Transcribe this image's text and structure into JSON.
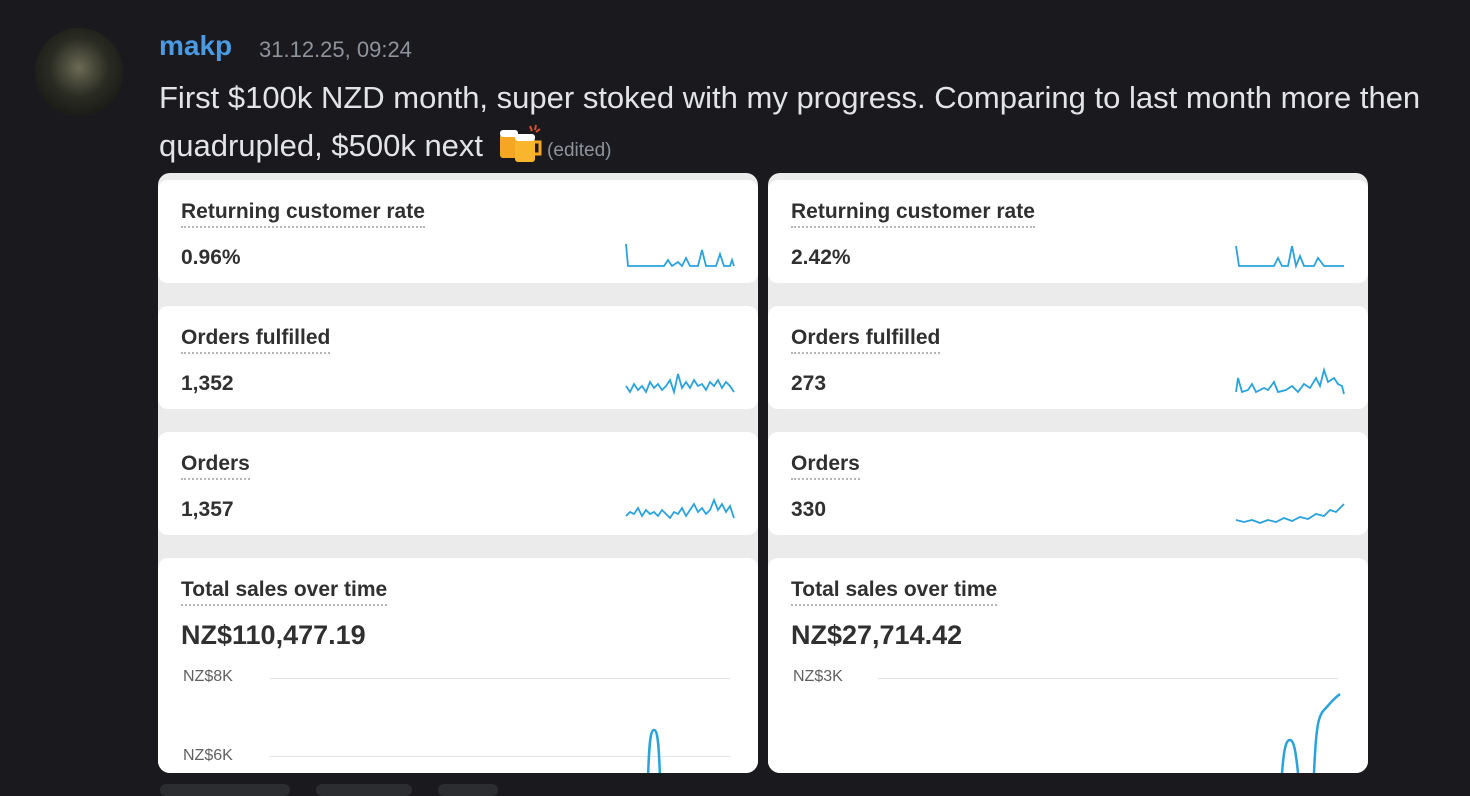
{
  "message": {
    "username": "makp",
    "timestamp": "31.12.25, 09:24",
    "text": "First $100k NZD month, super stoked with my progress. Comparing to last month more then quadrupled, $500k next",
    "edited": "(edited)"
  },
  "panels": [
    {
      "cards": [
        {
          "label": "Returning customer rate",
          "value": "0.96%"
        },
        {
          "label": "Orders fulfilled",
          "value": "1,352"
        },
        {
          "label": "Orders",
          "value": "1,357"
        }
      ],
      "sales": {
        "label": "Total sales over time",
        "value": "NZ$110,477.19",
        "axis_labels": [
          "NZ$8K",
          "NZ$6K"
        ]
      }
    },
    {
      "cards": [
        {
          "label": "Returning customer rate",
          "value": "2.42%"
        },
        {
          "label": "Orders fulfilled",
          "value": "273"
        },
        {
          "label": "Orders",
          "value": "330"
        }
      ],
      "sales": {
        "label": "Total sales over time",
        "value": "NZ$27,714.42",
        "axis_labels": [
          "NZ$3K"
        ]
      }
    }
  ]
}
